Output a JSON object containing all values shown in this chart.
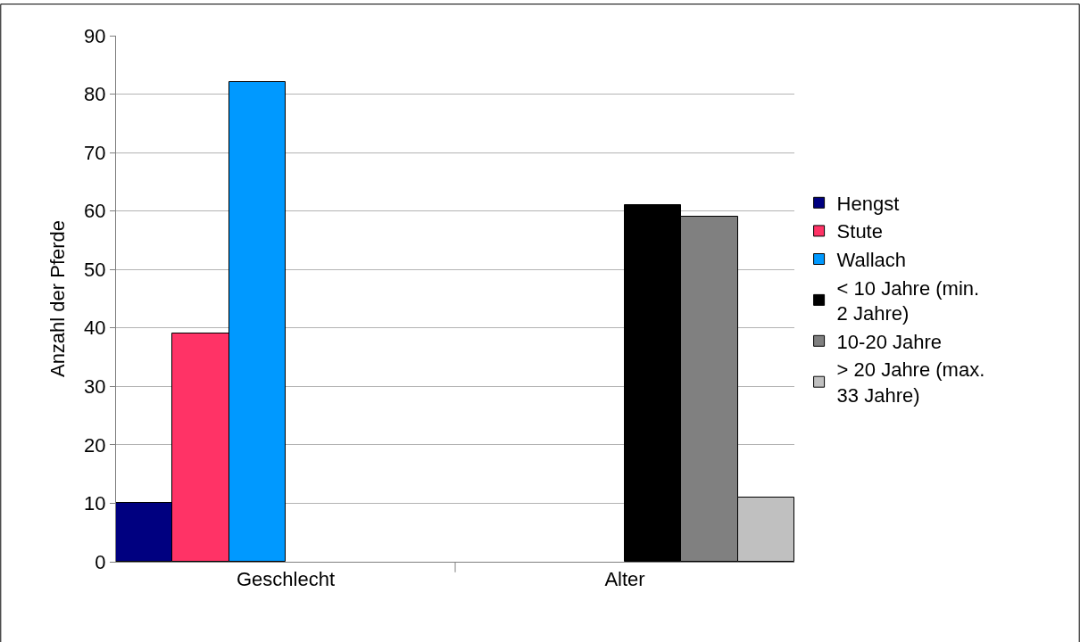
{
  "chart_data": {
    "type": "bar",
    "ylabel": "Anzahl der Pferde",
    "categories": [
      "Geschlecht",
      "Alter"
    ],
    "series": [
      {
        "name": "Hengst",
        "color": "#000080",
        "values": [
          10,
          null
        ]
      },
      {
        "name": "Stute",
        "color": "#ff3366",
        "values": [
          39,
          null
        ]
      },
      {
        "name": "Wallach",
        "color": "#0099ff",
        "values": [
          82,
          null
        ]
      },
      {
        "name": "< 10 Jahre (min. 2 Jahre)",
        "color": "#000000",
        "values": [
          null,
          61
        ]
      },
      {
        "name": "10-20 Jahre",
        "color": "#808080",
        "values": [
          null,
          59
        ]
      },
      {
        "name": "> 20 Jahre (max. 33 Jahre)",
        "color": "#c0c0c0",
        "values": [
          null,
          11
        ]
      }
    ],
    "ylim": [
      0,
      90
    ],
    "yticks": [
      0,
      10,
      20,
      30,
      40,
      50,
      60,
      70,
      80,
      90
    ],
    "grid": "y",
    "legend": "right"
  }
}
